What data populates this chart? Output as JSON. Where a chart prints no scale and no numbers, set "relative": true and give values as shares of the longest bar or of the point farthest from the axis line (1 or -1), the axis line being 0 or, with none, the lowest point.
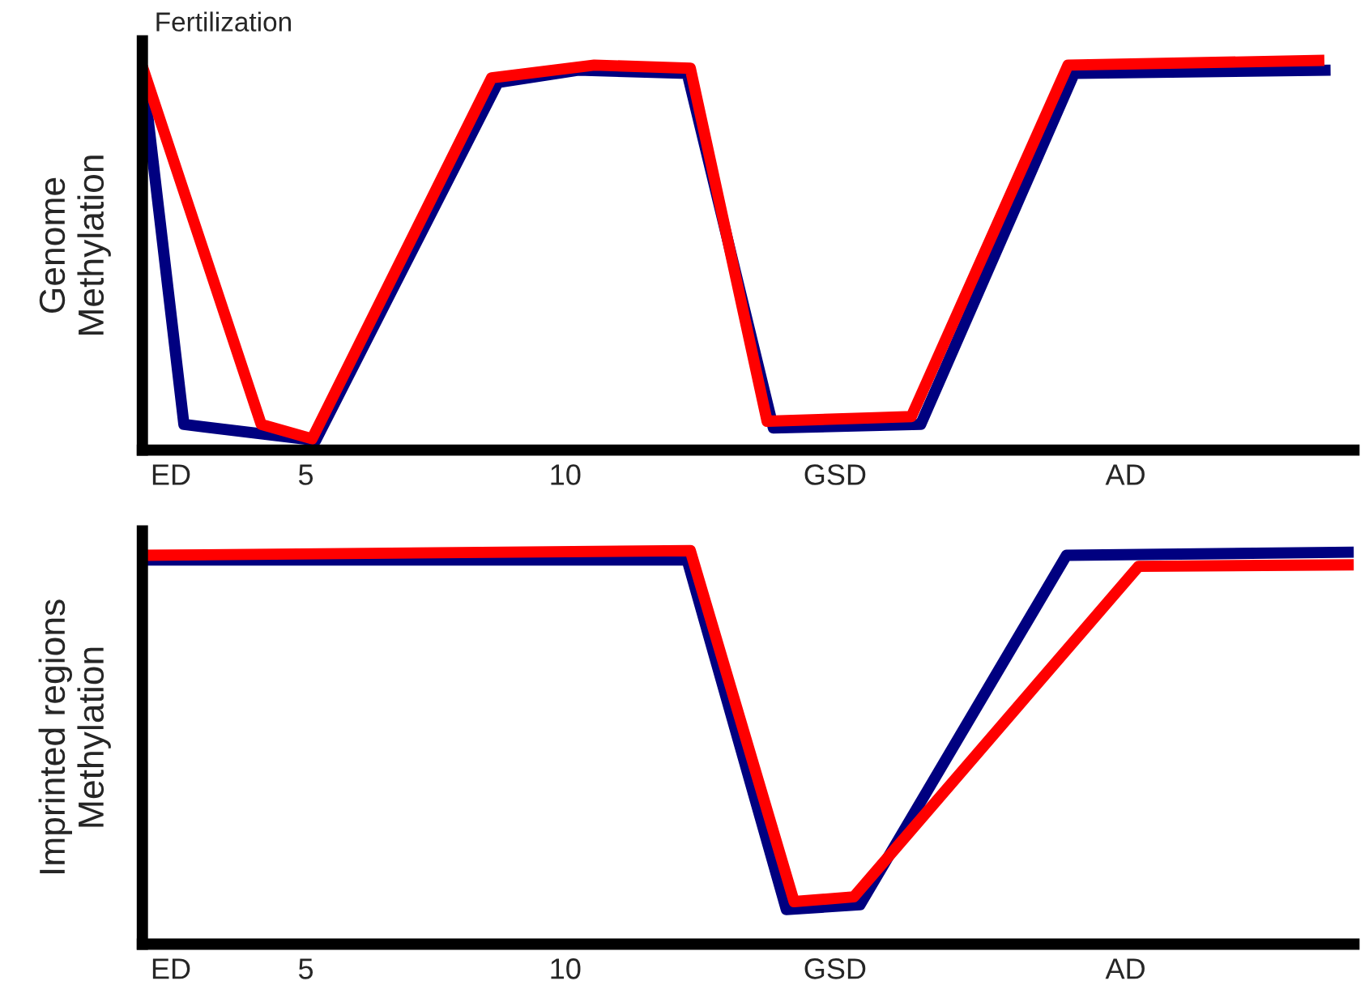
{
  "chart_data": [
    {
      "type": "line",
      "ylabel": "Genome\nMethylation",
      "relative": true,
      "annotations": [
        "Fertilization"
      ],
      "xlim": [
        1.85,
        25.2
      ],
      "xticks": [
        {
          "value": 2.4,
          "label": "ED"
        },
        5,
        10,
        {
          "value": 15.2,
          "label": "GSD"
        },
        {
          "value": 20.8,
          "label": "AD"
        }
      ],
      "tick_labels": "x",
      "grid": false,
      "legend": false,
      "marker": "none",
      "line_style": "solid",
      "series": [
        {
          "color": "#000080",
          "x": [
            1.85,
            2.65,
            5.19,
            8.7,
            10.25,
            12.35,
            14.01,
            16.85,
            19.81,
            24.75
          ],
          "values": [
            0.975,
            0.066,
            0.025,
            0.943,
            0.975,
            0.967,
            0.057,
            0.066,
            0.967,
            0.975
          ]
        },
        {
          "color": "#ff0000",
          "x": [
            1.85,
            4.14,
            5.12,
            8.58,
            10.56,
            12.41,
            13.89,
            16.67,
            19.69,
            24.63
          ],
          "values": [
            0.984,
            0.066,
            0.029,
            0.955,
            0.988,
            0.98,
            0.074,
            0.086,
            0.988,
            1
          ]
        }
      ]
    },
    {
      "type": "line",
      "ylabel": "Imprinted regions\nMethylation",
      "relative": true,
      "xlim": [
        1.85,
        25.2
      ],
      "xticks": [
        {
          "value": 2.4,
          "label": "ED"
        },
        5,
        10,
        {
          "value": 15.2,
          "label": "GSD"
        },
        {
          "value": 20.8,
          "label": "AD"
        }
      ],
      "tick_labels": "x",
      "grid": false,
      "legend": false,
      "marker": "none",
      "line_style": "solid",
      "series": [
        {
          "color": "#000080",
          "x": [
            1.85,
            12.35,
            14.26,
            15.68,
            19.66,
            25.2
          ],
          "values": [
            0.976,
            0.976,
            0.088,
            0.1,
            0.988,
            0.996
          ]
        },
        {
          "color": "#ff0000",
          "x": [
            1.85,
            12.41,
            14.41,
            15.56,
            21.05,
            25.2
          ],
          "values": [
            0.988,
            1,
            0.108,
            0.12,
            0.96,
            0.964
          ]
        }
      ]
    }
  ]
}
